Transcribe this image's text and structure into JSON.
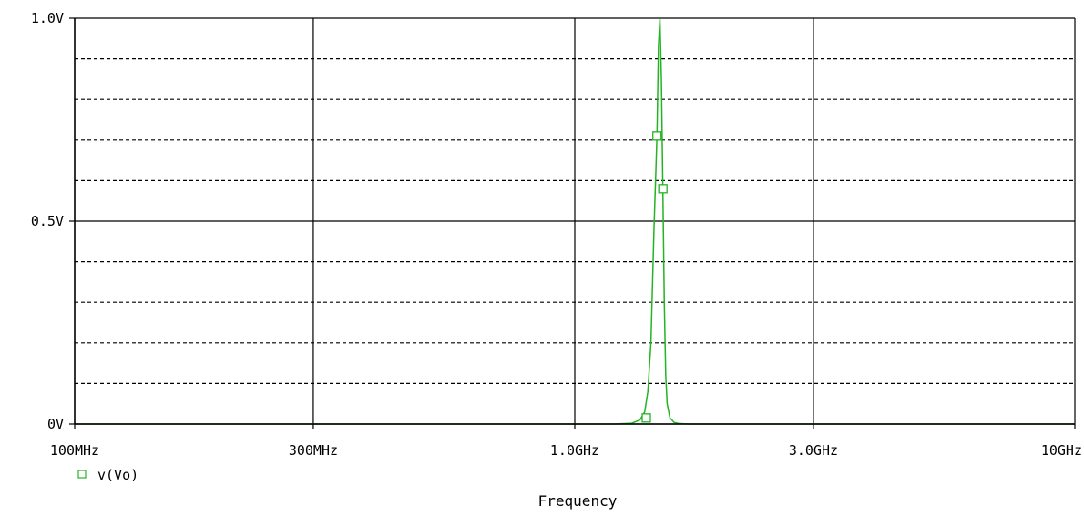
{
  "chart_data": {
    "type": "line",
    "title": "",
    "xlabel": "Frequency",
    "ylabel": "",
    "x_scale": "log",
    "xlim": [
      100000000,
      10000000000
    ],
    "ylim": [
      0,
      1.0
    ],
    "x_ticks": [
      {
        "value": 100000000,
        "label": "100MHz"
      },
      {
        "value": 300000000,
        "label": "300MHz"
      },
      {
        "value": 1000000000,
        "label": "1.0GHz"
      },
      {
        "value": 3000000000,
        "label": "3.0GHz"
      },
      {
        "value": 10000000000,
        "label": "10GHz"
      }
    ],
    "y_ticks": [
      {
        "value": 0,
        "label": "0V"
      },
      {
        "value": 0.5,
        "label": "0.5V"
      },
      {
        "value": 1.0,
        "label": "1.0V"
      }
    ],
    "y_minor_gridlines": [
      0.1,
      0.2,
      0.3,
      0.4,
      0.6,
      0.7,
      0.8,
      0.9
    ],
    "grid": true,
    "legend_position": "bottom-left",
    "series": [
      {
        "name": "v(Vo)",
        "color": "#22b422",
        "marker": "square",
        "x": [
          100000000,
          1200000000,
          1300000000,
          1350000000,
          1380000000,
          1400000000,
          1420000000,
          1440000000,
          1460000000,
          1470000000,
          1480000000,
          1490000000,
          1500000000,
          1510000000,
          1520000000,
          1530000000,
          1550000000,
          1580000000,
          1620000000,
          1700000000,
          10000000000
        ],
        "y": [
          0,
          0,
          0.002,
          0.01,
          0.03,
          0.08,
          0.2,
          0.48,
          0.71,
          0.93,
          1.0,
          0.85,
          0.58,
          0.3,
          0.12,
          0.05,
          0.015,
          0.004,
          0.001,
          0,
          0
        ],
        "marker_points": [
          {
            "x": 1390000000,
            "y": 0.015
          },
          {
            "x": 1460000000,
            "y": 0.71
          },
          {
            "x": 1500000000,
            "y": 0.58
          }
        ]
      }
    ]
  }
}
